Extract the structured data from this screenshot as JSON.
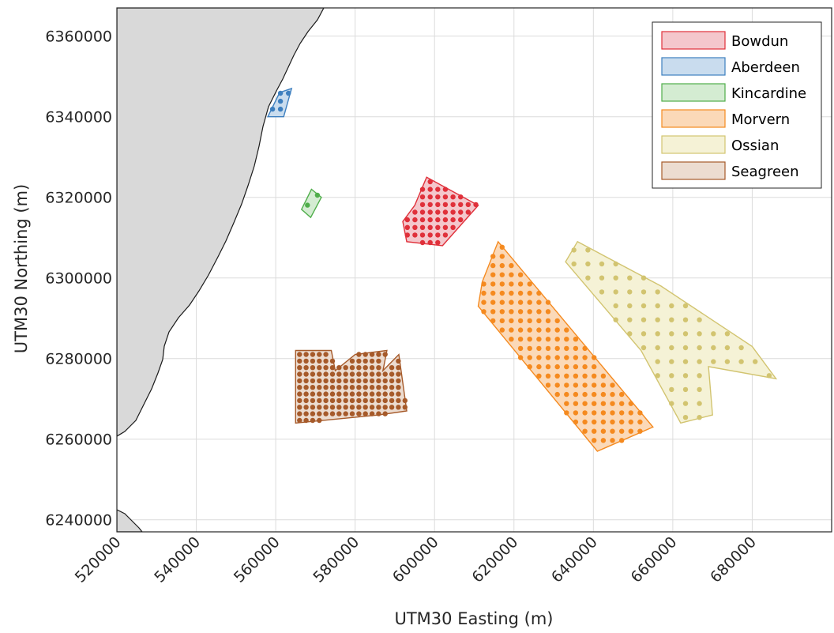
{
  "axes": {
    "xlabel": "UTM30 Easting (m)",
    "ylabel": "UTM30 Northing (m)",
    "xlim": [
      520000,
      700000
    ],
    "ylim": [
      6237000,
      6367000
    ],
    "xticks": [
      "520000",
      "540000",
      "560000",
      "580000",
      "600000",
      "620000",
      "640000",
      "660000",
      "680000"
    ],
    "yticks": [
      "6240000",
      "6260000",
      "6280000",
      "6300000",
      "6320000",
      "6340000",
      "6360000"
    ],
    "grid": true
  },
  "land": {
    "fill": "#d9d9d9",
    "stroke": "#1a1a1a"
  },
  "legend": {
    "placement": "top-right",
    "entries": [
      {
        "label": "Bowdun",
        "fill": "#f4c7cc",
        "stroke": "#e0303a"
      },
      {
        "label": "Aberdeen",
        "fill": "#c9dcee",
        "stroke": "#3d7fbf"
      },
      {
        "label": "Kincardine",
        "fill": "#d4ecd2",
        "stroke": "#4fae4a"
      },
      {
        "label": "Morvern",
        "fill": "#fbd9b8",
        "stroke": "#f58a1f"
      },
      {
        "label": "Ossian",
        "fill": "#f5f2d6",
        "stroke": "#d2c470"
      },
      {
        "label": "Seagreen",
        "fill": "#ecdcd0",
        "stroke": "#a65a2a"
      }
    ]
  },
  "sites": [
    {
      "name": "Bowdun",
      "fill": "#f4c7cc",
      "stroke": "#e0303a",
      "dot": "#e0303a",
      "polygon": [
        [
          598000,
          6325000
        ],
        [
          611000,
          6318000
        ],
        [
          602000,
          6308000
        ],
        [
          593000,
          6309000
        ],
        [
          592000,
          6314000
        ],
        [
          595000,
          6318000
        ]
      ],
      "turbine_rows": 8
    },
    {
      "name": "Aberdeen",
      "fill": "#c9dcee",
      "stroke": "#3d7fbf",
      "dot": "#3d7fbf",
      "polygon": [
        [
          561000,
          6346000
        ],
        [
          564000,
          6347000
        ],
        [
          562000,
          6340000
        ],
        [
          558000,
          6340000
        ]
      ],
      "turbine_rows": 2
    },
    {
      "name": "Kincardine",
      "fill": "#d4ecd2",
      "stroke": "#4fae4a",
      "dot": "#4fae4a",
      "polygon": [
        [
          569000,
          6322000
        ],
        [
          571500,
          6320000
        ],
        [
          568800,
          6315000
        ],
        [
          566500,
          6317000
        ]
      ],
      "turbine_rows": 1
    },
    {
      "name": "Morvern",
      "fill": "#fbd9b8",
      "stroke": "#f58a1f",
      "dot": "#f58a1f",
      "polygon": [
        [
          616000,
          6309000
        ],
        [
          655000,
          6263000
        ],
        [
          641000,
          6257000
        ],
        [
          611000,
          6293000
        ],
        [
          612000,
          6299000
        ]
      ],
      "turbine_rows": 18
    },
    {
      "name": "Ossian",
      "fill": "#f5f2d6",
      "stroke": "#d2c470",
      "dot": "#d2c470",
      "polygon": [
        [
          636000,
          6309000
        ],
        [
          657000,
          6298000
        ],
        [
          680000,
          6283000
        ],
        [
          686000,
          6275000
        ],
        [
          669000,
          6278000
        ],
        [
          670000,
          6266000
        ],
        [
          662000,
          6264000
        ],
        [
          652000,
          6282000
        ],
        [
          633000,
          6304000
        ]
      ],
      "turbine_rows": 12
    },
    {
      "name": "Seagreen",
      "fill": "#ecdcd0",
      "stroke": "#a65a2a",
      "dot": "#a65a2a",
      "polygon": [
        [
          565000,
          6282000
        ],
        [
          574000,
          6282000
        ],
        [
          575000,
          6277000
        ],
        [
          580000,
          6281000
        ],
        [
          588000,
          6282000
        ],
        [
          587000,
          6277000
        ],
        [
          591000,
          6281000
        ],
        [
          593000,
          6267000
        ],
        [
          586000,
          6266000
        ],
        [
          565000,
          6264000
        ]
      ],
      "turbine_rows": 10
    }
  ]
}
